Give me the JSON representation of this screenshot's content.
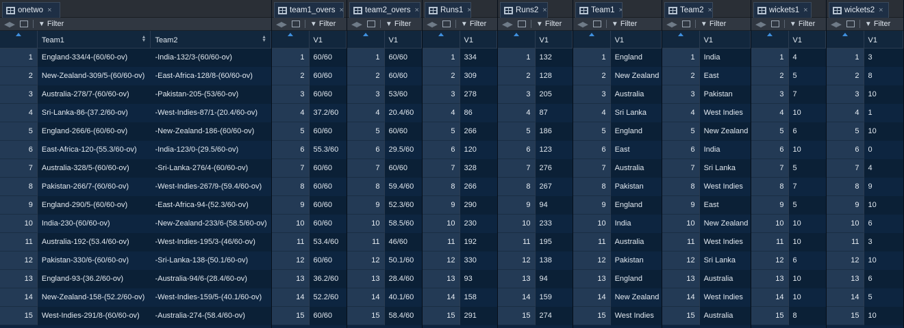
{
  "panels": [
    {
      "tab": "onetwo",
      "columns": [
        "Team1",
        "Team2"
      ],
      "has_filter": true,
      "rows": [
        [
          "England-334/4-(60/60-ov)",
          "-India-132/3-(60/60-ov)"
        ],
        [
          "New-Zealand-309/5-(60/60-ov)",
          "-East-Africa-128/8-(60/60-ov)"
        ],
        [
          "Australia-278/7-(60/60-ov)",
          "-Pakistan-205-(53/60-ov)"
        ],
        [
          "Sri-Lanka-86-(37.2/60-ov)",
          "-West-Indies-87/1-(20.4/60-ov)"
        ],
        [
          "England-266/6-(60/60-ov)",
          "-New-Zealand-186-(60/60-ov)"
        ],
        [
          "East-Africa-120-(55.3/60-ov)",
          "-India-123/0-(29.5/60-ov)"
        ],
        [
          "Australia-328/5-(60/60-ov)",
          "-Sri-Lanka-276/4-(60/60-ov)"
        ],
        [
          "Pakistan-266/7-(60/60-ov)",
          "-West-Indies-267/9-(59.4/60-ov)"
        ],
        [
          "England-290/5-(60/60-ov)",
          "-East-Africa-94-(52.3/60-ov)"
        ],
        [
          "India-230-(60/60-ov)",
          "-New-Zealand-233/6-(58.5/60-ov)"
        ],
        [
          "Australia-192-(53.4/60-ov)",
          "-West-Indies-195/3-(46/60-ov)"
        ],
        [
          "Pakistan-330/6-(60/60-ov)",
          "-Sri-Lanka-138-(50.1/60-ov)"
        ],
        [
          "England-93-(36.2/60-ov)",
          "-Australia-94/6-(28.4/60-ov)"
        ],
        [
          "New-Zealand-158-(52.2/60-ov)",
          "-West-Indies-159/5-(40.1/60-ov)"
        ],
        [
          "West-Indies-291/8-(60/60-ov)",
          "-Australia-274-(58.4/60-ov)"
        ]
      ]
    },
    {
      "tab": "team1_overs",
      "columns": [
        "V1"
      ],
      "has_filter": false,
      "rows": [
        [
          "60/60"
        ],
        [
          "60/60"
        ],
        [
          "60/60"
        ],
        [
          "37.2/60"
        ],
        [
          "60/60"
        ],
        [
          "55.3/60"
        ],
        [
          "60/60"
        ],
        [
          "60/60"
        ],
        [
          "60/60"
        ],
        [
          "60/60"
        ],
        [
          "53.4/60"
        ],
        [
          "60/60"
        ],
        [
          "36.2/60"
        ],
        [
          "52.2/60"
        ],
        [
          "60/60"
        ]
      ]
    },
    {
      "tab": "team2_overs",
      "columns": [
        "V1"
      ],
      "has_filter": false,
      "rows": [
        [
          "60/60"
        ],
        [
          "60/60"
        ],
        [
          "53/60"
        ],
        [
          "20.4/60"
        ],
        [
          "60/60"
        ],
        [
          "29.5/60"
        ],
        [
          "60/60"
        ],
        [
          "59.4/60"
        ],
        [
          "52.3/60"
        ],
        [
          "58.5/60"
        ],
        [
          "46/60"
        ],
        [
          "50.1/60"
        ],
        [
          "28.4/60"
        ],
        [
          "40.1/60"
        ],
        [
          "58.4/60"
        ]
      ]
    },
    {
      "tab": "Runs1",
      "columns": [
        "V1"
      ],
      "has_filter": false,
      "rows": [
        [
          "334"
        ],
        [
          "309"
        ],
        [
          "278"
        ],
        [
          "86"
        ],
        [
          "266"
        ],
        [
          "120"
        ],
        [
          "328"
        ],
        [
          "266"
        ],
        [
          "290"
        ],
        [
          "230"
        ],
        [
          "192"
        ],
        [
          "330"
        ],
        [
          "93"
        ],
        [
          "158"
        ],
        [
          "291"
        ]
      ]
    },
    {
      "tab": "Runs2",
      "columns": [
        "V1"
      ],
      "has_filter": false,
      "rows": [
        [
          "132"
        ],
        [
          "128"
        ],
        [
          "205"
        ],
        [
          "87"
        ],
        [
          "186"
        ],
        [
          "123"
        ],
        [
          "276"
        ],
        [
          "267"
        ],
        [
          "94"
        ],
        [
          "233"
        ],
        [
          "195"
        ],
        [
          "138"
        ],
        [
          "94"
        ],
        [
          "159"
        ],
        [
          "274"
        ]
      ]
    },
    {
      "tab": "Team1",
      "columns": [
        "V1"
      ],
      "has_filter": true,
      "rows": [
        [
          "England"
        ],
        [
          "New Zealand"
        ],
        [
          "Australia"
        ],
        [
          "Sri Lanka"
        ],
        [
          "England"
        ],
        [
          "East"
        ],
        [
          "Australia"
        ],
        [
          "Pakistan"
        ],
        [
          "England"
        ],
        [
          "India"
        ],
        [
          "Australia"
        ],
        [
          "Pakistan"
        ],
        [
          "England"
        ],
        [
          "New Zealand"
        ],
        [
          "West Indies"
        ]
      ]
    },
    {
      "tab": "Team2",
      "columns": [
        "V1"
      ],
      "has_filter": true,
      "rows": [
        [
          "India"
        ],
        [
          "East"
        ],
        [
          "Pakistan"
        ],
        [
          "West Indies"
        ],
        [
          "New Zealand"
        ],
        [
          "India"
        ],
        [
          "Sri Lanka"
        ],
        [
          "West Indies"
        ],
        [
          "East"
        ],
        [
          "New Zealand"
        ],
        [
          "West Indies"
        ],
        [
          "Sri Lanka"
        ],
        [
          "Australia"
        ],
        [
          "West Indies"
        ],
        [
          "Australia"
        ]
      ]
    },
    {
      "tab": "wickets1",
      "columns": [
        "V1"
      ],
      "has_filter": false,
      "rows": [
        [
          "4"
        ],
        [
          "5"
        ],
        [
          "7"
        ],
        [
          "10"
        ],
        [
          "6"
        ],
        [
          "10"
        ],
        [
          "5"
        ],
        [
          "7"
        ],
        [
          "5"
        ],
        [
          "10"
        ],
        [
          "10"
        ],
        [
          "6"
        ],
        [
          "10"
        ],
        [
          "10"
        ],
        [
          "8"
        ]
      ]
    },
    {
      "tab": "wickets2",
      "columns": [
        "V1"
      ],
      "has_filter": false,
      "rows": [
        [
          "3"
        ],
        [
          "8"
        ],
        [
          "10"
        ],
        [
          "1"
        ],
        [
          "10"
        ],
        [
          "0"
        ],
        [
          "4"
        ],
        [
          "9"
        ],
        [
          "10"
        ],
        [
          "6"
        ],
        [
          "3"
        ],
        [
          "10"
        ],
        [
          "6"
        ],
        [
          "5"
        ],
        [
          "10"
        ]
      ]
    }
  ],
  "toolbar": {
    "filter_label": "Filter",
    "close_glyph": "×"
  },
  "icons": {
    "tab": "table-icon",
    "nav": "back-forward-arrows-icon",
    "popout": "popout-icon",
    "filter": "filter-icon",
    "sort": "sort-icon"
  }
}
